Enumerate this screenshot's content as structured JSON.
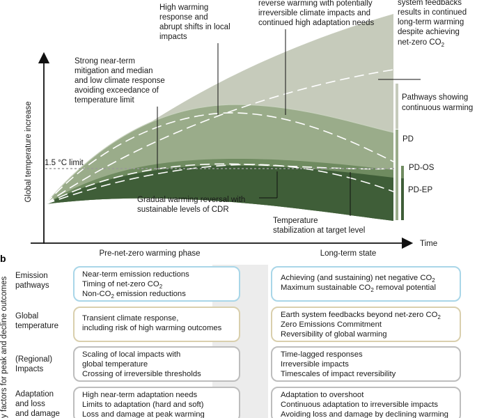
{
  "panel_b_letter": "b",
  "panel_a": {
    "y_axis_label": "Global temperature increase",
    "x_axis_label": "Time",
    "limit_label": "1.5 °C limit",
    "phase_labels": [
      "Pre-net-zero warming phase",
      "Long-term state"
    ],
    "category_labels": {
      "continuous": [
        "Pathways showing",
        "continuous warming"
      ],
      "pd": "PD",
      "pd_os": "PD-OS",
      "pd_ep": "PD-EP"
    },
    "annotations": {
      "strong_mitigation": [
        "Strong near-term",
        "mitigation and median",
        "and low climate response",
        "avoiding exceedance of",
        "temperature limit"
      ],
      "high_warming": [
        "High warming",
        "response and",
        "abrupt shifts in local",
        "impacts"
      ],
      "reverse_warming": [
        "reverse warming with potentially",
        "irreversible climate impacts and",
        "continued high adaptation needs"
      ],
      "system_feedbacks": [
        "system feedbacks",
        "results in continued",
        "long-term warming",
        "despite achieving",
        "net-zero CO"
      ],
      "system_feedbacks_sub": "2",
      "gradual_reversal": [
        "Gradual warming reversal with",
        "sustainable levels of CDR"
      ],
      "stabilization": [
        "Temperature",
        "stabilization at target level"
      ]
    }
  },
  "panel_b": {
    "y_axis_label": "y factors for peak and decline outcomes",
    "rows": [
      {
        "label": [
          "Emission",
          "pathways"
        ],
        "left": [
          [
            "Near-term emission reductions",
            ""
          ],
          [
            "Timing of net-zero CO",
            "2"
          ],
          [
            "Non-CO",
            "2",
            " emission reductions"
          ]
        ],
        "right": [
          [
            "Achieving (and sustaining) net negative CO",
            "2"
          ],
          [
            "Maximum sustainable CO",
            "2",
            " removal potential"
          ]
        ]
      },
      {
        "label": [
          "Global",
          "temperature"
        ],
        "left": [
          [
            "Transient climate response,",
            ""
          ],
          [
            "including risk of high warming outcomes",
            ""
          ]
        ],
        "right": [
          [
            "Earth system feedbacks beyond net-zero CO",
            "2"
          ],
          [
            "Zero Emissions Commitment",
            ""
          ],
          [
            "Reversibility of global warming",
            ""
          ]
        ]
      },
      {
        "label": [
          "(Regional)",
          "Impacts"
        ],
        "left": [
          [
            "Scaling of local impacts with",
            ""
          ],
          [
            "global temperature",
            ""
          ],
          [
            "Crossing of irreversible thresholds",
            ""
          ]
        ],
        "right": [
          [
            "Time-lagged responses",
            ""
          ],
          [
            "Irreversible impacts",
            ""
          ],
          [
            "Timescales of impact reversibility",
            ""
          ]
        ]
      },
      {
        "label": [
          "Adaptation",
          "and loss",
          "and damage"
        ],
        "left": [
          [
            "High near-term adaptation needs",
            ""
          ],
          [
            "Limits to adaptation (hard and soft)",
            ""
          ],
          [
            "Loss and damage at peak warming",
            ""
          ]
        ],
        "right": [
          [
            "Adaptation to overshoot",
            ""
          ],
          [
            "Continuous adaptation to irreversible impacts",
            ""
          ],
          [
            "Avoiding loss and damage by declining warming",
            ""
          ]
        ]
      }
    ]
  },
  "colors": {
    "band_continuous": "#c6cbbb",
    "band_pd": "#9aac8a",
    "band_pd_os": "#6f8b60",
    "band_pd_ep": "#3f5e38",
    "box_blue": "#a9d6e8",
    "box_tan": "#d9cfad",
    "box_grey": "#bdbdbd",
    "bg_arrow": "#ececec"
  }
}
